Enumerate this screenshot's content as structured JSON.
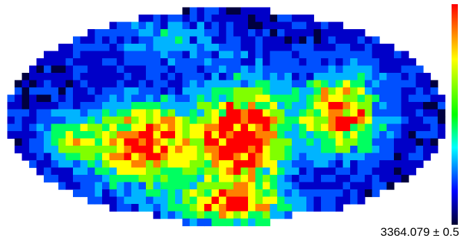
{
  "figure": {
    "value_label": "3364.079 ± 0.5",
    "colormap": [
      "#000040",
      "#0000c8",
      "#0050ff",
      "#00b4ff",
      "#00ff60",
      "#80ff00",
      "#ffff00",
      "#ff8000",
      "#ff0000"
    ]
  }
}
